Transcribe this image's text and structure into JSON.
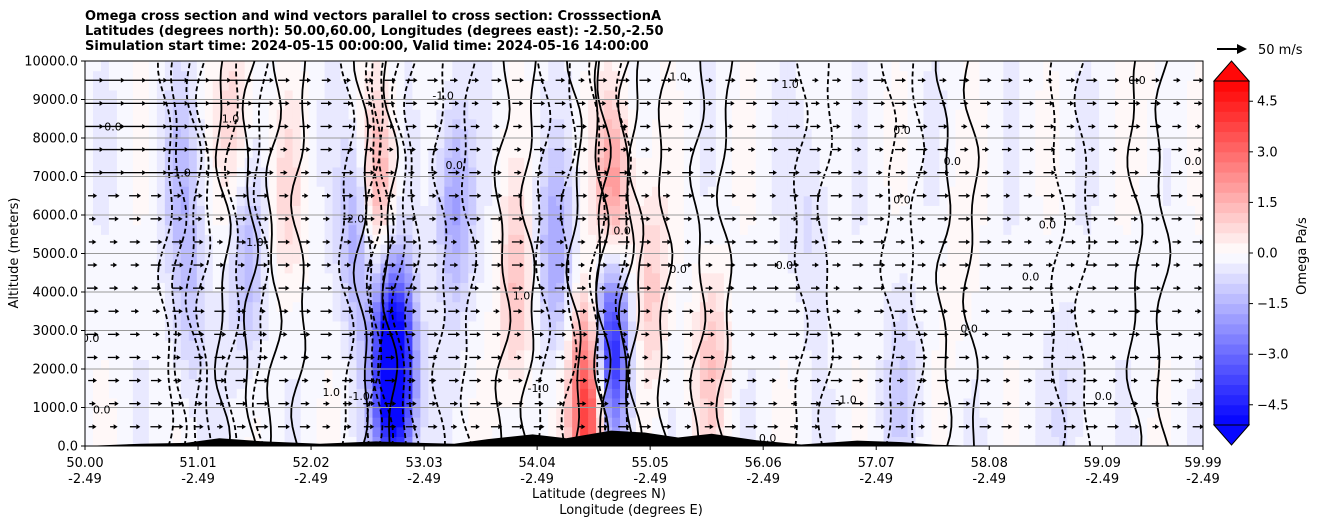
{
  "title": {
    "line1": "Omega cross section and wind vectors parallel to cross section: CrosssectionA",
    "line2": "Latitudes (degrees north): 50.00,60.00, Longitudes (degrees east): -2.50,-2.50",
    "line3": "Simulation start time: 2024-05-15 00:00:00, Valid time: 2024-05-16 14:00:00"
  },
  "wind_key": {
    "label": "50 m/s"
  },
  "chart_data": {
    "type": "heatmap",
    "title": "Omega cross section and wind vectors parallel to cross section: CrosssectionA",
    "ylabel": "Altitude (meters)",
    "xlabel_lat": "Latitude (degrees N)",
    "xlabel_lon": "Longitude (degrees E)",
    "ylim": [
      0,
      10000
    ],
    "xlim": [
      50.0,
      59.99
    ],
    "y_ticks": [
      {
        "value": 0,
        "label": "0.0"
      },
      {
        "value": 1000,
        "label": "1000.0"
      },
      {
        "value": 2000,
        "label": "2000.0"
      },
      {
        "value": 3000,
        "label": "3000.0"
      },
      {
        "value": 4000,
        "label": "4000.0"
      },
      {
        "value": 5000,
        "label": "5000.0"
      },
      {
        "value": 6000,
        "label": "6000.0"
      },
      {
        "value": 7000,
        "label": "7000.0"
      },
      {
        "value": 8000,
        "label": "8000.0"
      },
      {
        "value": 9000,
        "label": "9000.0"
      },
      {
        "value": 10000,
        "label": "10000.0"
      }
    ],
    "x_ticks": [
      {
        "value": 50.0,
        "lat": "50.00",
        "lon": "-2.49"
      },
      {
        "value": 51.01,
        "lat": "51.01",
        "lon": "-2.49"
      },
      {
        "value": 52.02,
        "lat": "52.02",
        "lon": "-2.49"
      },
      {
        "value": 53.03,
        "lat": "53.03",
        "lon": "-2.49"
      },
      {
        "value": 54.04,
        "lat": "54.04",
        "lon": "-2.49"
      },
      {
        "value": 55.05,
        "lat": "55.05",
        "lon": "-2.49"
      },
      {
        "value": 56.06,
        "lat": "56.06",
        "lon": "-2.49"
      },
      {
        "value": 57.07,
        "lat": "57.07",
        "lon": "-2.49"
      },
      {
        "value": 58.08,
        "lat": "58.08",
        "lon": "-2.49"
      },
      {
        "value": 59.09,
        "lat": "59.09",
        "lon": "-2.49"
      },
      {
        "value": 59.99,
        "lat": "59.99",
        "lon": "-2.49"
      }
    ],
    "grid": "horizontal",
    "colorbar": {
      "label": "Omega Pa/s",
      "vmin": -5.1,
      "vmax": 5.1,
      "levels": [
        -5.1,
        -4.8,
        -4.5,
        -4.2,
        -3.9,
        -3.6,
        -3.3,
        -3.0,
        -2.7,
        -2.4,
        -2.1,
        -1.8,
        -1.5,
        -1.2,
        -0.9,
        -0.6,
        -0.3,
        0.0,
        0.3,
        0.6,
        0.9,
        1.2,
        1.5,
        1.8,
        2.1,
        2.4,
        2.7,
        3.0,
        3.3,
        3.6,
        3.9,
        4.2,
        4.5,
        4.8,
        5.1
      ],
      "ticks": [
        {
          "value": -4.5,
          "label": "−4.5"
        },
        {
          "value": -3.0,
          "label": "−3.0"
        },
        {
          "value": -1.5,
          "label": "−1.5"
        },
        {
          "value": 0.0,
          "label": "0.0"
        },
        {
          "value": 1.5,
          "label": "1.5"
        },
        {
          "value": 3.0,
          "label": "3.0"
        },
        {
          "value": 4.5,
          "label": "4.5"
        }
      ],
      "negative_color": "#0000ff",
      "neutral_color": "#ffffff",
      "positive_color": "#ff0000"
    },
    "features": [
      {
        "lat": 50.85,
        "alt": 7000,
        "omega": -1.0
      },
      {
        "lat": 50.95,
        "alt": 3800,
        "omega": -0.9
      },
      {
        "lat": 51.35,
        "alt": 8400,
        "omega": 1.0
      },
      {
        "lat": 51.45,
        "alt": 4800,
        "omega": -1.3
      },
      {
        "lat": 51.8,
        "alt": 6500,
        "omega": 0.8
      },
      {
        "lat": 52.45,
        "alt": 5500,
        "omega": -2.0
      },
      {
        "lat": 52.6,
        "alt": 6500,
        "omega": 2.2
      },
      {
        "lat": 52.7,
        "alt": 2200,
        "omega": -3.5
      },
      {
        "lat": 52.8,
        "alt": 1800,
        "omega": -4.5
      },
      {
        "lat": 53.3,
        "alt": 6200,
        "omega": -1.8
      },
      {
        "lat": 53.85,
        "alt": 4000,
        "omega": 1.4
      },
      {
        "lat": 54.2,
        "alt": 5000,
        "omega": -1.6
      },
      {
        "lat": 54.5,
        "alt": 1000,
        "omega": 4.8
      },
      {
        "lat": 54.7,
        "alt": 2500,
        "omega": -4.8
      },
      {
        "lat": 54.72,
        "alt": 6500,
        "omega": 2.4
      },
      {
        "lat": 55.05,
        "alt": 4000,
        "omega": 1.2
      },
      {
        "lat": 55.6,
        "alt": 2200,
        "omega": 1.2
      },
      {
        "lat": 56.5,
        "alt": 6000,
        "omega": -0.6
      },
      {
        "lat": 57.3,
        "alt": 1500,
        "omega": -0.7
      },
      {
        "lat": 57.8,
        "alt": 4800,
        "omega": 0.4
      },
      {
        "lat": 58.8,
        "alt": 1000,
        "omega": -0.5
      },
      {
        "lat": 59.5,
        "alt": 9000,
        "omega": 0.3
      }
    ],
    "contour_labels": [
      {
        "lat": 50.85,
        "alt": 7000,
        "label": "-1.0"
      },
      {
        "lat": 50.15,
        "alt": 850,
        "label": "0.0"
      },
      {
        "lat": 50.25,
        "alt": 8200,
        "label": "0.0"
      },
      {
        "lat": 50.05,
        "alt": 2700,
        "label": "0.0"
      },
      {
        "lat": 51.3,
        "alt": 8400,
        "label": "1.0"
      },
      {
        "lat": 51.5,
        "alt": 5200,
        "label": "-1.0"
      },
      {
        "lat": 52.4,
        "alt": 5800,
        "label": "-2.0"
      },
      {
        "lat": 52.45,
        "alt": 1200,
        "label": "-1.0"
      },
      {
        "lat": 52.2,
        "alt": 1300,
        "label": "1.0"
      },
      {
        "lat": 53.2,
        "alt": 9000,
        "label": "-1.0"
      },
      {
        "lat": 53.3,
        "alt": 7200,
        "label": "0.0"
      },
      {
        "lat": 53.9,
        "alt": 3800,
        "label": "1.0"
      },
      {
        "lat": 54.05,
        "alt": 1400,
        "label": "-1.0"
      },
      {
        "lat": 54.8,
        "alt": 5500,
        "label": "0.0"
      },
      {
        "lat": 55.3,
        "alt": 4500,
        "label": "0.0"
      },
      {
        "lat": 55.3,
        "alt": 9500,
        "label": "1.0"
      },
      {
        "lat": 56.25,
        "alt": 4600,
        "label": "0.0"
      },
      {
        "lat": 56.3,
        "alt": 9300,
        "label": "1.0"
      },
      {
        "lat": 56.1,
        "alt": 100,
        "label": "0.0"
      },
      {
        "lat": 56.8,
        "alt": 1100,
        "label": "-1.0"
      },
      {
        "lat": 57.3,
        "alt": 8100,
        "label": "0.0"
      },
      {
        "lat": 57.3,
        "alt": 6300,
        "label": "0.0"
      },
      {
        "lat": 57.75,
        "alt": 7300,
        "label": "0.0"
      },
      {
        "lat": 57.9,
        "alt": 2950,
        "label": "0.0"
      },
      {
        "lat": 58.6,
        "alt": 5650,
        "label": "0.0"
      },
      {
        "lat": 59.4,
        "alt": 9400,
        "label": "0.0"
      },
      {
        "lat": 59.9,
        "alt": 7300,
        "label": "0.0"
      },
      {
        "lat": 59.1,
        "alt": 1200,
        "label": "0.0"
      },
      {
        "lat": 58.45,
        "alt": 4300,
        "label": "0.0"
      }
    ],
    "terrain": [
      {
        "lat": 50.0,
        "alt": 0
      },
      {
        "lat": 50.5,
        "alt": 60
      },
      {
        "lat": 50.9,
        "alt": 80
      },
      {
        "lat": 51.2,
        "alt": 200
      },
      {
        "lat": 51.6,
        "alt": 120
      },
      {
        "lat": 52.1,
        "alt": 60
      },
      {
        "lat": 52.6,
        "alt": 120
      },
      {
        "lat": 53.0,
        "alt": 80
      },
      {
        "lat": 53.3,
        "alt": 60
      },
      {
        "lat": 53.6,
        "alt": 180
      },
      {
        "lat": 54.0,
        "alt": 300
      },
      {
        "lat": 54.3,
        "alt": 200
      },
      {
        "lat": 54.7,
        "alt": 400
      },
      {
        "lat": 55.0,
        "alt": 350
      },
      {
        "lat": 55.3,
        "alt": 220
      },
      {
        "lat": 55.6,
        "alt": 320
      },
      {
        "lat": 56.0,
        "alt": 150
      },
      {
        "lat": 56.4,
        "alt": 40
      },
      {
        "lat": 56.9,
        "alt": 140
      },
      {
        "lat": 57.3,
        "alt": 100
      },
      {
        "lat": 57.6,
        "alt": 30
      },
      {
        "lat": 58.0,
        "alt": 0
      },
      {
        "lat": 59.99,
        "alt": 0
      }
    ]
  }
}
